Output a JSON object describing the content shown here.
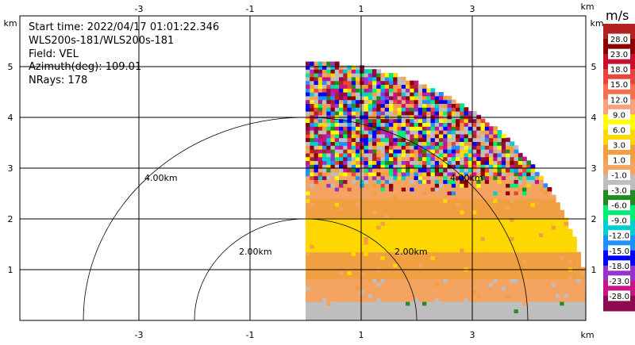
{
  "info": {
    "start_time": "Start time: 2022/04/17 01:01:22.346",
    "instrument": "WLS200s-181/WLS200s-181",
    "field": "Field: VEL",
    "azimuth": "Azimuth(deg): 109.01",
    "nrays": "NRays: 178"
  },
  "colorbar": {
    "unit": "m/s",
    "levels": [
      "28.0",
      "23.0",
      "18.0",
      "15.0",
      "12.0",
      "9.0",
      "6.0",
      "3.0",
      "1.0",
      "-1.0",
      "-3.0",
      "-6.0",
      "-9.0",
      "-12.0",
      "-15.0",
      "-18.0",
      "-23.0",
      "-28.0"
    ],
    "colors": [
      "#b22222",
      "#8b0000",
      "#c8102e",
      "#e8453c",
      "#f4704f",
      "#f7a27d",
      "#ffff00",
      "#ffd700",
      "#f0a040",
      "#f4a460",
      "#bebebe",
      "#228b22",
      "#00ee76",
      "#00ced1",
      "#1e90ff",
      "#0000ff",
      "#9932cc",
      "#c71585",
      "#8b0a50"
    ]
  },
  "chart_data": {
    "type": "heatmap",
    "title": "",
    "xlabel": "km",
    "ylabel": "km",
    "xlim": [
      -4,
      4.2
    ],
    "ylim": [
      0,
      5.8
    ],
    "xticks": [
      "-3",
      "-1",
      "1",
      "3"
    ],
    "yticks": [
      "1",
      "2",
      "3",
      "4",
      "5"
    ],
    "range_rings": [
      {
        "radius_km": 2.0,
        "label": "2.00km"
      },
      {
        "radius_km": 4.0,
        "label": "4.00km"
      }
    ],
    "field": "VEL",
    "sector_deg": [
      0,
      90
    ],
    "max_range_km": 5.1,
    "bands": [
      {
        "from_km": 0.0,
        "to_km": 0.35,
        "value_ms": -2.0
      },
      {
        "from_km": 0.35,
        "to_km": 0.8,
        "value_ms": -0.5
      },
      {
        "from_km": 0.8,
        "to_km": 1.3,
        "value_ms": 1.5
      },
      {
        "from_km": 1.3,
        "to_km": 2.0,
        "value_ms": 4.0
      },
      {
        "from_km": 2.0,
        "to_km": 2.4,
        "value_ms": 2.0
      },
      {
        "from_km": 2.4,
        "to_km": 3.0,
        "value_ms": 0.0
      },
      {
        "from_km": 3.0,
        "to_km": 5.1,
        "value_ms": "noise"
      }
    ]
  }
}
